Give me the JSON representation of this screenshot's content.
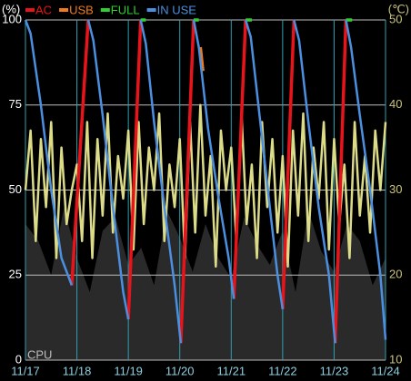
{
  "chart_data": {
    "type": "line",
    "ylabel": "(%)",
    "y2label": "(℃)",
    "xlim": [
      0,
      7
    ],
    "xticks": [
      {
        "value": 0,
        "label": "11/17"
      },
      {
        "value": 1,
        "label": "11/18"
      },
      {
        "value": 2,
        "label": "11/19"
      },
      {
        "value": 3,
        "label": "11/20"
      },
      {
        "value": 4,
        "label": "11/21"
      },
      {
        "value": 5,
        "label": "11/22"
      },
      {
        "value": 6,
        "label": "11/23"
      },
      {
        "value": 7,
        "label": "11/24"
      }
    ],
    "ylim": [
      0,
      100
    ],
    "yticks": [
      0,
      25,
      50,
      75,
      100
    ],
    "y2lim": [
      10,
      50
    ],
    "y2ticks": [
      10,
      20,
      30,
      40,
      50
    ],
    "grid": true,
    "series": [
      {
        "name": "CPU",
        "style": "area",
        "color": "#2a2a2a",
        "x": [
          0,
          0.25,
          0.5,
          0.75,
          1,
          1.25,
          1.5,
          1.75,
          2,
          2.25,
          2.5,
          2.75,
          3,
          3.25,
          3.5,
          3.75,
          4,
          4.25,
          4.5,
          4.75,
          5,
          5.25,
          5.5,
          5.75,
          6,
          6.25,
          6.5,
          6.75,
          7
        ],
        "values": [
          40,
          35,
          25,
          45,
          30,
          20,
          38,
          42,
          28,
          33,
          22,
          44,
          36,
          26,
          40,
          30,
          24,
          42,
          34,
          28,
          38,
          20,
          44,
          32,
          26,
          40,
          35,
          22,
          30
        ]
      },
      {
        "axis": "y2",
        "color": "#dcdb88",
        "x": [
          0,
          0.1,
          0.2,
          0.3,
          0.4,
          0.5,
          0.6,
          0.7,
          0.8,
          0.9,
          1,
          1.1,
          1.2,
          1.3,
          1.4,
          1.5,
          1.6,
          1.7,
          1.8,
          1.9,
          2,
          2.1,
          2.2,
          2.3,
          2.4,
          2.5,
          2.6,
          2.7,
          2.8,
          2.9,
          3,
          3.1,
          3.2,
          3.3,
          3.4,
          3.5,
          3.6,
          3.7,
          3.8,
          3.9,
          4,
          4.1,
          4.2,
          4.3,
          4.4,
          4.5,
          4.6,
          4.7,
          4.8,
          4.9,
          5,
          5.1,
          5.2,
          5.3,
          5.4,
          5.5,
          5.6,
          5.7,
          5.8,
          5.9,
          6,
          6.1,
          6.2,
          6.3,
          6.4,
          6.5,
          6.6,
          6.7,
          6.8,
          6.9,
          7
        ],
        "values": [
          30,
          37,
          24,
          36,
          28,
          38,
          22,
          35,
          26,
          30,
          33,
          24,
          38,
          22,
          36,
          27,
          39,
          25,
          34,
          29,
          37,
          23,
          38,
          26,
          35,
          30,
          39,
          24,
          33,
          28,
          36,
          22,
          38,
          25,
          40,
          27,
          34,
          21,
          37,
          30,
          35,
          24,
          39,
          26,
          33,
          22,
          38,
          28,
          36,
          25,
          34,
          21,
          37,
          27,
          39,
          24,
          35,
          29,
          38,
          23,
          36,
          26,
          33,
          22,
          38,
          27,
          34,
          25,
          37,
          30,
          38
        ]
      },
      {
        "name": "AC",
        "color": "#e8141b",
        "x": [
          0.9,
          1.22,
          null,
          2.0,
          2.24,
          null,
          3.02,
          3.27,
          null,
          4.05,
          4.28,
          null,
          5.0,
          5.22,
          null,
          6.02,
          6.23
        ],
        "values": [
          22,
          100,
          null,
          12,
          100,
          null,
          5,
          100,
          null,
          18,
          100,
          null,
          15,
          100,
          null,
          5,
          100
        ]
      },
      {
        "name": "USB",
        "color": "#f07a1e",
        "x": [
          3.4,
          3.45
        ],
        "values": [
          92,
          85
        ]
      },
      {
        "name": "FULL",
        "color": "#2ed12e",
        "x": [
          2.24,
          2.34,
          null,
          3.27,
          3.37,
          null,
          4.28,
          4.4,
          null,
          6.23,
          6.35
        ],
        "values": [
          100,
          100,
          null,
          100,
          100,
          null,
          100,
          100,
          null,
          100,
          100
        ]
      },
      {
        "name": "IN USE",
        "color": "#4b8fe0",
        "x": [
          0,
          0.1,
          0.3,
          0.5,
          0.7,
          0.9,
          null,
          1.22,
          1.32,
          1.5,
          1.7,
          1.9,
          2.0,
          null,
          2.24,
          2.34,
          2.5,
          2.7,
          2.9,
          3.02,
          null,
          3.27,
          3.37,
          3.55,
          3.75,
          3.95,
          4.05,
          null,
          4.28,
          4.38,
          4.55,
          4.75,
          4.9,
          5.0,
          null,
          5.22,
          5.32,
          5.5,
          5.7,
          5.9,
          6.02,
          null,
          6.23,
          6.33,
          6.5,
          6.7,
          6.9,
          7.0
        ],
        "values": [
          100,
          96,
          75,
          50,
          30,
          22,
          null,
          100,
          94,
          72,
          45,
          20,
          12,
          null,
          100,
          93,
          70,
          45,
          22,
          5,
          null,
          100,
          92,
          68,
          48,
          30,
          18,
          null,
          100,
          95,
          72,
          45,
          25,
          15,
          null,
          100,
          94,
          70,
          45,
          25,
          5,
          null,
          100,
          92,
          72,
          50,
          25,
          6
        ]
      }
    ]
  }
}
